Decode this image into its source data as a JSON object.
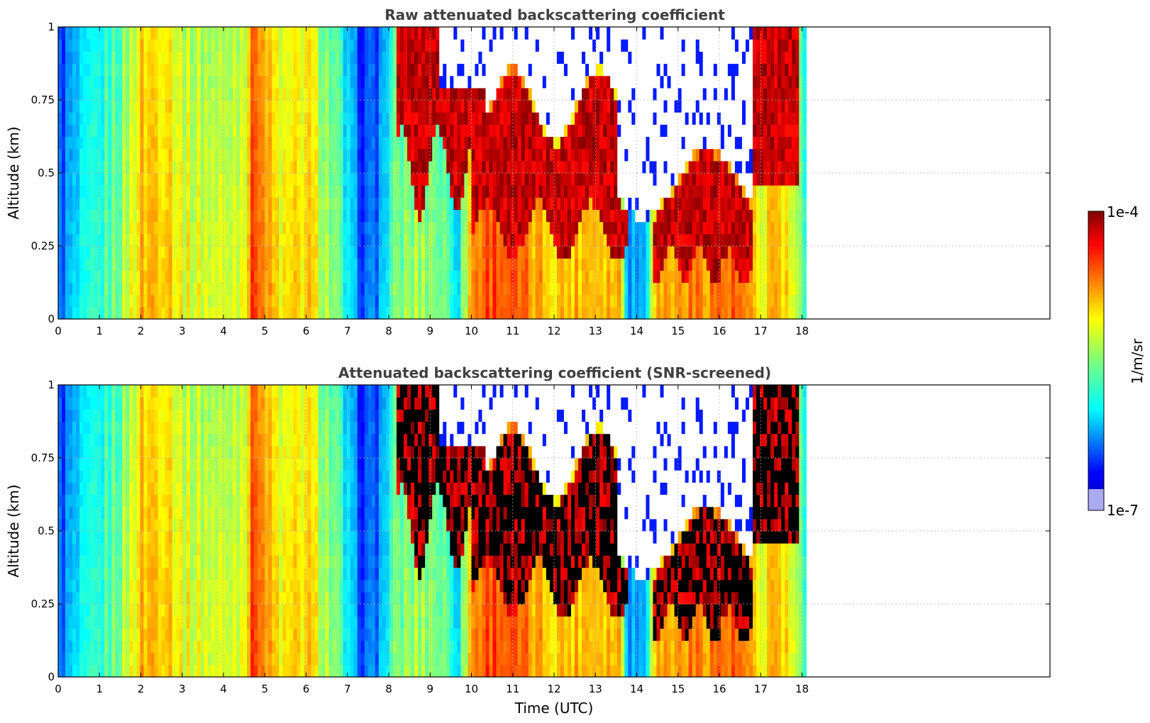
{
  "chart_data": [
    {
      "type": "heatmap",
      "title": "Raw attenuated backscattering coefficient",
      "xlabel": "",
      "ylabel": "Altitude (km)",
      "xlim": [
        0,
        24
      ],
      "ylim": [
        0,
        1
      ],
      "data_x_extent": [
        0,
        18.1
      ],
      "x_ticks": [
        "0",
        "1",
        "2",
        "3",
        "4",
        "5",
        "6",
        "7",
        "8",
        "9",
        "10",
        "11",
        "12",
        "13",
        "14",
        "15",
        "16",
        "17",
        "18"
      ],
      "y_ticks": [
        "0",
        "0.25",
        "0.5",
        "0.75",
        "1"
      ],
      "grid": true,
      "colormap": "jet",
      "snr_screened": false
    },
    {
      "type": "heatmap",
      "title": "Attenuated backscattering coefficient (SNR-screened)",
      "xlabel": "Time (UTC)",
      "ylabel": "Altitude (km)",
      "xlim": [
        0,
        24
      ],
      "ylim": [
        0,
        1
      ],
      "data_x_extent": [
        0,
        18.1
      ],
      "x_ticks": [
        "0",
        "1",
        "2",
        "3",
        "4",
        "5",
        "6",
        "7",
        "8",
        "9",
        "10",
        "11",
        "12",
        "13",
        "14",
        "15",
        "16",
        "17",
        "18"
      ],
      "y_ticks": [
        "0",
        "0.25",
        "0.5",
        "0.75",
        "1"
      ],
      "grid": true,
      "colormap": "jet",
      "snr_screened": true
    }
  ],
  "colorbar": {
    "label": "1/m/sr",
    "max_label": "1e-4",
    "min_label": "1e-7",
    "scale": "log",
    "range": [
      1e-07,
      0.0001
    ]
  },
  "colors": {
    "title": "#404040",
    "screened": "#000000",
    "grid": "#b0b0b0"
  }
}
